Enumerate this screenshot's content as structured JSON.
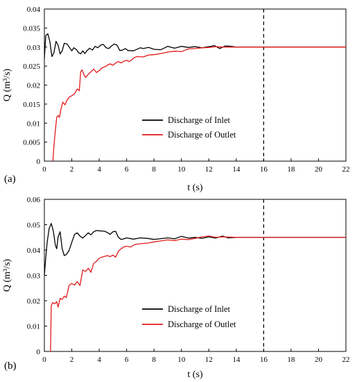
{
  "chart_data": [
    {
      "type": "line",
      "panel_label": "(a)",
      "xlabel": "t (s)",
      "ylabel": "Q (m³/s)",
      "xlim": [
        0,
        22
      ],
      "ylim": [
        0,
        0.04
      ],
      "xticks": [
        0,
        2,
        4,
        6,
        8,
        10,
        12,
        14,
        16,
        18,
        20,
        22
      ],
      "yticks": [
        "0",
        "0.005",
        "0.01",
        "0.015",
        "0.02",
        "0.025",
        "0.03",
        "0.035",
        "0.04"
      ],
      "grid": false,
      "legend_position": "center-right",
      "vline": {
        "x": 16,
        "style": "dashed",
        "color": "#000000"
      },
      "series": [
        {
          "name": "Discharge of Inlet",
          "color": "#000000",
          "points": [
            [
              0,
              0.027
            ],
            [
              0.1,
              0.033
            ],
            [
              0.25,
              0.0335
            ],
            [
              0.4,
              0.0315
            ],
            [
              0.55,
              0.0275
            ],
            [
              0.7,
              0.0285
            ],
            [
              0.85,
              0.0315
            ],
            [
              1.0,
              0.0305
            ],
            [
              1.15,
              0.0282
            ],
            [
              1.3,
              0.029
            ],
            [
              1.45,
              0.031
            ],
            [
              1.65,
              0.0308
            ],
            [
              1.85,
              0.0298
            ],
            [
              2.0,
              0.029
            ],
            [
              2.15,
              0.0298
            ],
            [
              2.35,
              0.0293
            ],
            [
              2.5,
              0.0285
            ],
            [
              2.65,
              0.0282
            ],
            [
              2.8,
              0.029
            ],
            [
              2.95,
              0.0283
            ],
            [
              3.1,
              0.029
            ],
            [
              3.3,
              0.0297
            ],
            [
              3.5,
              0.0292
            ],
            [
              3.7,
              0.0302
            ],
            [
              3.9,
              0.0298
            ],
            [
              4.1,
              0.0305
            ],
            [
              4.3,
              0.0307
            ],
            [
              4.5,
              0.0298
            ],
            [
              4.7,
              0.0296
            ],
            [
              4.9,
              0.0303
            ],
            [
              5.1,
              0.0308
            ],
            [
              5.3,
              0.0305
            ],
            [
              5.5,
              0.0291
            ],
            [
              5.7,
              0.0292
            ],
            [
              5.9,
              0.0296
            ],
            [
              6.1,
              0.0291
            ],
            [
              6.5,
              0.029
            ],
            [
              7.0,
              0.0298
            ],
            [
              7.2,
              0.0296
            ],
            [
              7.6,
              0.0299
            ],
            [
              8.0,
              0.0294
            ],
            [
              8.5,
              0.0293
            ],
            [
              9.0,
              0.0302
            ],
            [
              9.5,
              0.0297
            ],
            [
              10.0,
              0.0302
            ],
            [
              10.5,
              0.0299
            ],
            [
              11.0,
              0.0301
            ],
            [
              11.5,
              0.0298
            ],
            [
              12.0,
              0.0301
            ],
            [
              12.4,
              0.0304
            ],
            [
              12.8,
              0.0296
            ],
            [
              13.2,
              0.0303
            ],
            [
              13.6,
              0.0302
            ],
            [
              14.0,
              0.03
            ],
            [
              16.0,
              0.03
            ],
            [
              22.0,
              0.03
            ]
          ]
        },
        {
          "name": "Discharge of Outlet",
          "color": "#e31a1c",
          "points": [
            [
              0.62,
              0
            ],
            [
              0.7,
              0.004
            ],
            [
              0.8,
              0.008
            ],
            [
              0.9,
              0.0115
            ],
            [
              1.0,
              0.012
            ],
            [
              1.1,
              0.0115
            ],
            [
              1.2,
              0.0135
            ],
            [
              1.35,
              0.0155
            ],
            [
              1.5,
              0.0148
            ],
            [
              1.65,
              0.016
            ],
            [
              1.8,
              0.0168
            ],
            [
              2.0,
              0.0172
            ],
            [
              2.2,
              0.0177
            ],
            [
              2.4,
              0.019
            ],
            [
              2.55,
              0.0185
            ],
            [
              2.65,
              0.0235
            ],
            [
              2.75,
              0.024
            ],
            [
              2.85,
              0.023
            ],
            [
              3.0,
              0.022
            ],
            [
              3.2,
              0.0228
            ],
            [
              3.4,
              0.0235
            ],
            [
              3.6,
              0.0242
            ],
            [
              3.8,
              0.0233
            ],
            [
              4.0,
              0.0238
            ],
            [
              4.2,
              0.0245
            ],
            [
              4.4,
              0.0248
            ],
            [
              4.6,
              0.0252
            ],
            [
              4.8,
              0.0256
            ],
            [
              5.0,
              0.0252
            ],
            [
              5.2,
              0.0258
            ],
            [
              5.4,
              0.0262
            ],
            [
              5.6,
              0.0258
            ],
            [
              5.8,
              0.0263
            ],
            [
              6.0,
              0.0265
            ],
            [
              6.2,
              0.0262
            ],
            [
              6.4,
              0.0267
            ],
            [
              6.6,
              0.0273
            ],
            [
              6.8,
              0.0275
            ],
            [
              7.2,
              0.0274
            ],
            [
              7.6,
              0.0279
            ],
            [
              8.0,
              0.028
            ],
            [
              8.5,
              0.0283
            ],
            [
              9.0,
              0.0287
            ],
            [
              9.5,
              0.0289
            ],
            [
              10.0,
              0.0288
            ],
            [
              10.5,
              0.0295
            ],
            [
              11.0,
              0.0296
            ],
            [
              11.5,
              0.0298
            ],
            [
              12.0,
              0.0299
            ],
            [
              12.5,
              0.0301
            ],
            [
              13.0,
              0.03
            ],
            [
              14.0,
              0.03
            ],
            [
              16.0,
              0.03
            ],
            [
              22.0,
              0.03
            ]
          ]
        }
      ]
    },
    {
      "type": "line",
      "panel_label": "(b)",
      "xlabel": "t (s)",
      "ylabel": "Q (m³/s)",
      "xlim": [
        0,
        22
      ],
      "ylim": [
        0,
        0.06
      ],
      "xticks": [
        0,
        2,
        4,
        6,
        8,
        10,
        12,
        14,
        16,
        18,
        20,
        22
      ],
      "yticks": [
        "0",
        "0.01",
        "0.02",
        "0.03",
        "0.04",
        "0.05",
        "0.06"
      ],
      "grid": false,
      "legend_position": "center-right",
      "vline": {
        "x": 16,
        "style": "dashed",
        "color": "#000000"
      },
      "series": [
        {
          "name": "Discharge of Inlet",
          "color": "#000000",
          "points": [
            [
              0,
              0.03
            ],
            [
              0.1,
              0.037
            ],
            [
              0.2,
              0.043
            ],
            [
              0.35,
              0.0485
            ],
            [
              0.5,
              0.0505
            ],
            [
              0.65,
              0.0475
            ],
            [
              0.8,
              0.042
            ],
            [
              0.9,
              0.0405
            ],
            [
              1.0,
              0.0452
            ],
            [
              1.15,
              0.0472
            ],
            [
              1.3,
              0.0405
            ],
            [
              1.45,
              0.0378
            ],
            [
              1.6,
              0.0382
            ],
            [
              1.8,
              0.0398
            ],
            [
              2.0,
              0.043
            ],
            [
              2.2,
              0.0462
            ],
            [
              2.4,
              0.0468
            ],
            [
              2.6,
              0.0455
            ],
            [
              2.8,
              0.0447
            ],
            [
              3.0,
              0.0457
            ],
            [
              3.2,
              0.0468
            ],
            [
              3.4,
              0.046
            ],
            [
              3.6,
              0.0472
            ],
            [
              3.8,
              0.0477
            ],
            [
              4.0,
              0.0476
            ],
            [
              4.2,
              0.0475
            ],
            [
              4.4,
              0.0474
            ],
            [
              4.6,
              0.0469
            ],
            [
              4.8,
              0.0462
            ],
            [
              5.0,
              0.0472
            ],
            [
              5.2,
              0.0474
            ],
            [
              5.4,
              0.045
            ],
            [
              5.6,
              0.0442
            ],
            [
              5.8,
              0.0444
            ],
            [
              6.0,
              0.0448
            ],
            [
              6.5,
              0.0443
            ],
            [
              7.0,
              0.0448
            ],
            [
              7.5,
              0.0446
            ],
            [
              8.0,
              0.0442
            ],
            [
              8.5,
              0.0445
            ],
            [
              9.0,
              0.0448
            ],
            [
              9.5,
              0.0444
            ],
            [
              10.0,
              0.0454
            ],
            [
              10.5,
              0.0447
            ],
            [
              11.0,
              0.045
            ],
            [
              11.5,
              0.0446
            ],
            [
              12.0,
              0.0452
            ],
            [
              12.5,
              0.0447
            ],
            [
              13.0,
              0.0455
            ],
            [
              13.4,
              0.0448
            ],
            [
              14.0,
              0.045
            ],
            [
              16.0,
              0.045
            ],
            [
              22.0,
              0.045
            ]
          ]
        },
        {
          "name": "Discharge of Outlet",
          "color": "#e31a1c",
          "points": [
            [
              0.45,
              0
            ],
            [
              0.5,
              0.018
            ],
            [
              0.6,
              0.0193
            ],
            [
              0.75,
              0.0188
            ],
            [
              0.9,
              0.0197
            ],
            [
              1.0,
              0.0175
            ],
            [
              1.15,
              0.021
            ],
            [
              1.3,
              0.0205
            ],
            [
              1.45,
              0.0218
            ],
            [
              1.6,
              0.0212
            ],
            [
              1.8,
              0.026
            ],
            [
              2.0,
              0.0268
            ],
            [
              2.2,
              0.0262
            ],
            [
              2.4,
              0.0275
            ],
            [
              2.6,
              0.026
            ],
            [
              2.8,
              0.0322
            ],
            [
              3.0,
              0.0315
            ],
            [
              3.2,
              0.0328
            ],
            [
              3.4,
              0.0312
            ],
            [
              3.6,
              0.0348
            ],
            [
              3.8,
              0.0355
            ],
            [
              4.0,
              0.0368
            ],
            [
              4.2,
              0.0372
            ],
            [
              4.4,
              0.0375
            ],
            [
              4.6,
              0.0378
            ],
            [
              4.8,
              0.0374
            ],
            [
              5.0,
              0.038
            ],
            [
              5.2,
              0.0372
            ],
            [
              5.4,
              0.0395
            ],
            [
              5.6,
              0.0405
            ],
            [
              5.8,
              0.0412
            ],
            [
              6.0,
              0.0415
            ],
            [
              6.3,
              0.0412
            ],
            [
              6.6,
              0.0422
            ],
            [
              7.0,
              0.0425
            ],
            [
              7.5,
              0.0427
            ],
            [
              8.0,
              0.0432
            ],
            [
              8.5,
              0.0436
            ],
            [
              9.0,
              0.044
            ],
            [
              9.5,
              0.0437
            ],
            [
              10.0,
              0.0443
            ],
            [
              10.5,
              0.0441
            ],
            [
              11.0,
              0.0446
            ],
            [
              11.5,
              0.0452
            ],
            [
              12.0,
              0.0455
            ],
            [
              12.5,
              0.045
            ],
            [
              13.0,
              0.0452
            ],
            [
              14.0,
              0.045
            ],
            [
              16.0,
              0.045
            ],
            [
              22.0,
              0.045
            ]
          ]
        }
      ]
    }
  ]
}
